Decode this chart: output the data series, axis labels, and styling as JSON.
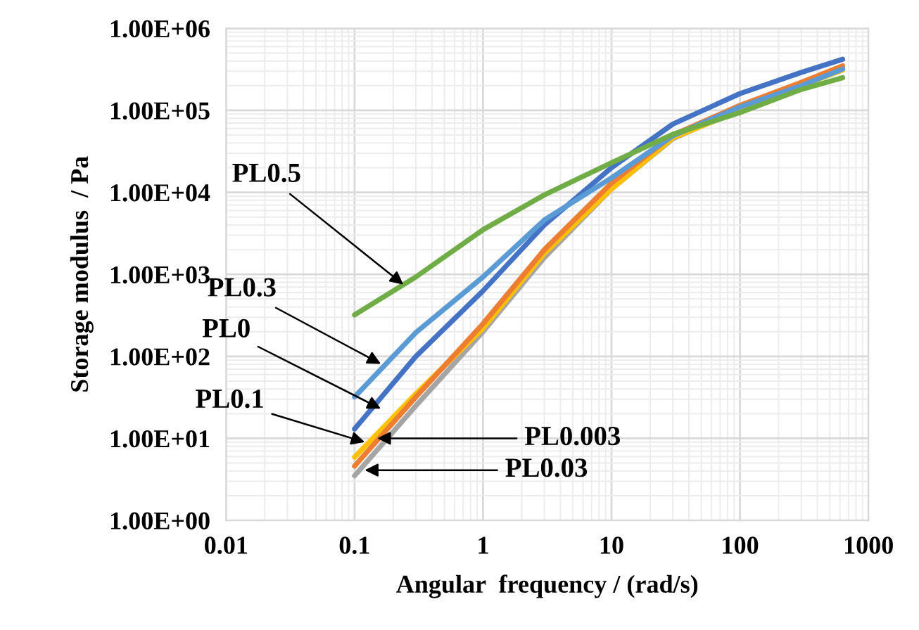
{
  "chart_data": {
    "type": "line",
    "xlabel": "Angular  frequency / (rad/s)",
    "ylabel": "Storage modulus  / Pa",
    "log": "xy",
    "grid": true,
    "legend": false,
    "x": [
      0.1,
      0.3,
      1,
      3,
      10,
      30,
      100,
      300,
      630
    ],
    "series": [
      {
        "color": "#70ad47",
        "values": [
          320,
          930,
          3500,
          9300,
          23000,
          51000,
          94000,
          180000,
          250000
        ]
      },
      {
        "color": "#5b9bd5",
        "values": [
          32,
          195,
          930,
          4600,
          15000,
          49000,
          110000,
          200000,
          320000
        ]
      },
      {
        "color": "#4472c4",
        "values": [
          13,
          100,
          630,
          4000,
          20000,
          68000,
          160000,
          290000,
          420000
        ]
      },
      {
        "color": "#ed7d31",
        "values": [
          4.6,
          32,
          250,
          2000,
          13000,
          50000,
          115000,
          220000,
          350000
        ]
      },
      {
        "color": "#ffc000",
        "values": [
          5.9,
          35,
          220,
          1800,
          11000,
          46000,
          100000,
          200000,
          310000
        ]
      },
      {
        "color": "#a5a5a5",
        "values": [
          3.5,
          25,
          200,
          1600,
          11000,
          45000,
          105000,
          210000,
          320000
        ]
      }
    ],
    "xlim": [
      0.01,
      1000
    ],
    "xticks": [
      0.01,
      0.1,
      1,
      10,
      100,
      1000
    ],
    "ylim": [
      1,
      1000000
    ],
    "yticks": [
      {
        "value": 1,
        "label": "1.00E+00"
      },
      {
        "value": 10,
        "label": "1.00E+01"
      },
      {
        "value": 100,
        "label": "1.00E+02"
      },
      {
        "value": 1000,
        "label": "1.00E+03"
      },
      {
        "value": 10000,
        "label": "1.00E+04"
      },
      {
        "value": 100000,
        "label": "1.00E+05"
      },
      {
        "value": 1000000,
        "label": "1.00E+06"
      }
    ],
    "annotations": [
      {
        "text": "PL0.5",
        "x": 0.24,
        "y": 750
      },
      {
        "text": "PL0.3",
        "x": 0.16,
        "y": 81
      },
      {
        "text": "PL0",
        "x": 0.16,
        "y": 23
      },
      {
        "text": "PL0.1",
        "x": 0.12,
        "y": 9
      },
      {
        "text": "PL0.003",
        "x": 0.15,
        "y": 10
      },
      {
        "text": "PL0.03",
        "x": 0.12,
        "y": 4.1
      }
    ]
  }
}
